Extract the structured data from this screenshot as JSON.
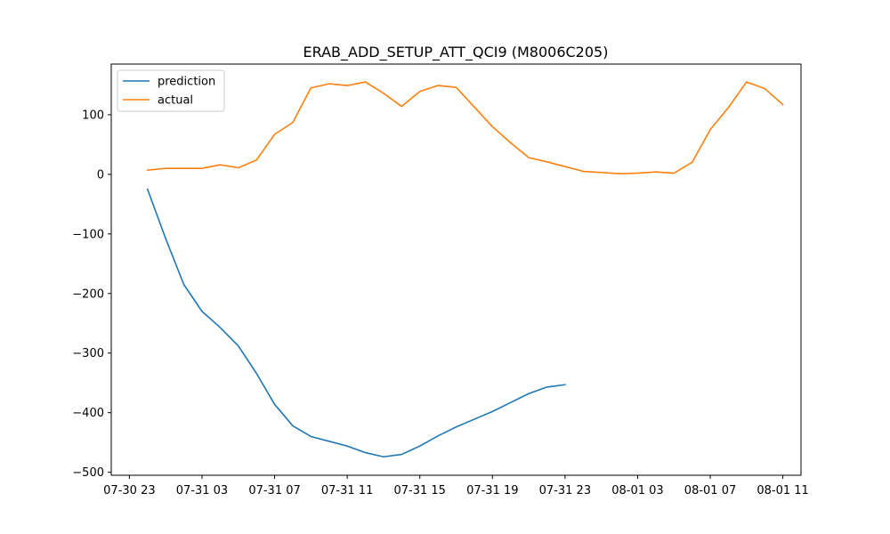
{
  "chart_data": {
    "type": "line",
    "title": "ERAB_ADD_SETUP_ATT_QCI9 (M8006C205)",
    "xlabel": "",
    "ylabel": "",
    "x_start": "07-30 23",
    "x_tick_labels": [
      "07-30 23",
      "07-31 03",
      "07-31 07",
      "07-31 11",
      "07-31 15",
      "07-31 19",
      "07-31 23",
      "08-01 03",
      "08-01 07",
      "08-01 11"
    ],
    "y_ticks": [
      -500,
      -400,
      -300,
      -200,
      -100,
      0,
      100
    ],
    "xlim": [
      "07-30 22",
      "08-01 12"
    ],
    "ylim": [
      -505,
      185
    ],
    "legend_position": "top-left",
    "grid": false,
    "series": [
      {
        "name": "prediction",
        "color": "#1f77b4",
        "x": [
          "07-31 00",
          "07-31 01",
          "07-31 02",
          "07-31 03",
          "07-31 04",
          "07-31 05",
          "07-31 06",
          "07-31 07",
          "07-31 08",
          "07-31 09",
          "07-31 10",
          "07-31 11",
          "07-31 12",
          "07-31 13",
          "07-31 14",
          "07-31 15",
          "07-31 16",
          "07-31 17",
          "07-31 18",
          "07-31 19",
          "07-31 20",
          "07-31 21",
          "07-31 22",
          "07-31 23"
        ],
        "values": [
          -25,
          -108,
          -185,
          -230,
          -257,
          -288,
          -334,
          -386,
          -422,
          -440,
          -448,
          -456,
          -467,
          -474,
          -470,
          -456,
          -439,
          -424,
          -411,
          -398,
          -383,
          -368,
          -357,
          -353
        ]
      },
      {
        "name": "actual",
        "color": "#ff7f0e",
        "x": [
          "07-31 00",
          "07-31 01",
          "07-31 02",
          "07-31 03",
          "07-31 04",
          "07-31 05",
          "07-31 06",
          "07-31 07",
          "07-31 08",
          "07-31 09",
          "07-31 10",
          "07-31 11",
          "07-31 12",
          "07-31 13",
          "07-31 14",
          "07-31 15",
          "07-31 16",
          "07-31 17",
          "07-31 18",
          "07-31 19",
          "07-31 20",
          "07-31 21",
          "07-31 22",
          "07-31 23",
          "08-01 00",
          "08-01 01",
          "08-01 02",
          "08-01 03",
          "08-01 04",
          "08-01 05",
          "08-01 06",
          "08-01 07",
          "08-01 08",
          "08-01 09",
          "08-01 10",
          "08-01 11"
        ],
        "values": [
          7,
          10,
          10,
          10,
          16,
          11,
          24,
          67,
          87,
          145,
          152,
          149,
          155,
          136,
          114,
          139,
          149,
          146,
          113,
          80,
          53,
          28,
          21,
          13,
          5,
          3,
          1,
          2,
          4,
          2,
          20,
          75,
          112,
          155,
          144,
          117
        ]
      }
    ]
  }
}
